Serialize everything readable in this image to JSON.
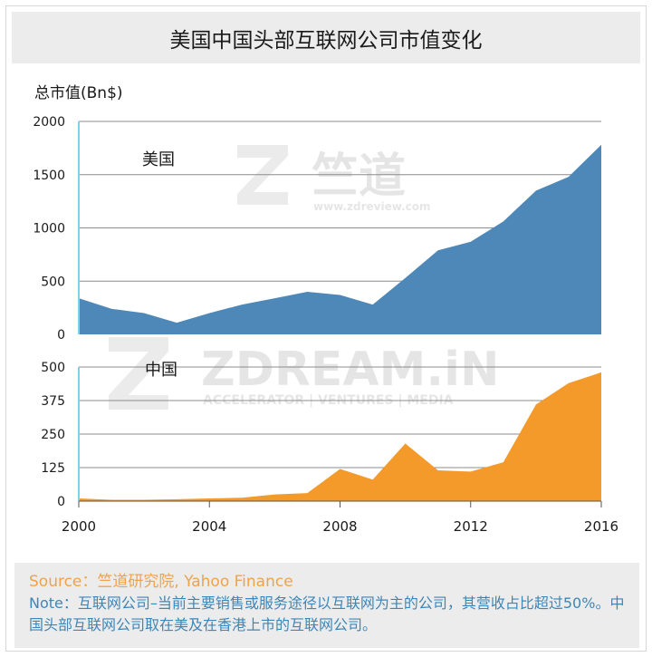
{
  "title": "美国中国头部互联网公司市值变化",
  "y_unit_label": "总市值(Bn$)",
  "watermarks": {
    "top_brand": "竺道",
    "top_url": "www.zdreview.com",
    "mid_brand": "ZDREAM.iN",
    "mid_tagline": "ACCELERATOR | VENTURES | MEDIA"
  },
  "footer": {
    "source": "Source：竺道研究院, Yahoo Finance",
    "note": "Note：互联网公司–当前主要销售或服务途径以互联网为主的公司，其营收占比超过50%。中国头部互联网公司取在美及在香港上市的互联网公司。"
  },
  "colors": {
    "us": "#4d88b8",
    "cn": "#f39a2b",
    "grid": "#8c8c8c",
    "axis_line": "#7fd0e8"
  },
  "chart_data": [
    {
      "type": "area",
      "series_name": "美国",
      "x": [
        2000,
        2001,
        2002,
        2003,
        2004,
        2005,
        2006,
        2007,
        2008,
        2009,
        2010,
        2011,
        2012,
        2013,
        2014,
        2015,
        2016
      ],
      "values": [
        340,
        240,
        200,
        110,
        200,
        280,
        340,
        400,
        370,
        280,
        530,
        790,
        870,
        1060,
        1350,
        1480,
        1780
      ],
      "ylim": [
        0,
        2000
      ],
      "yticks": [
        0,
        500,
        1000,
        1500,
        2000
      ]
    },
    {
      "type": "area",
      "series_name": "中国",
      "x": [
        2000,
        2001,
        2002,
        2003,
        2004,
        2005,
        2006,
        2007,
        2008,
        2009,
        2010,
        2011,
        2012,
        2013,
        2014,
        2015,
        2016
      ],
      "values": [
        10,
        5,
        5,
        7,
        10,
        13,
        25,
        30,
        120,
        80,
        215,
        115,
        110,
        145,
        360,
        440,
        480
      ],
      "ylim": [
        0,
        500
      ],
      "yticks": [
        0,
        125,
        250,
        375,
        500
      ]
    }
  ],
  "x_axis": {
    "ticks": [
      2000,
      2004,
      2008,
      2012,
      2016
    ],
    "xlim": [
      2000,
      2016
    ]
  }
}
